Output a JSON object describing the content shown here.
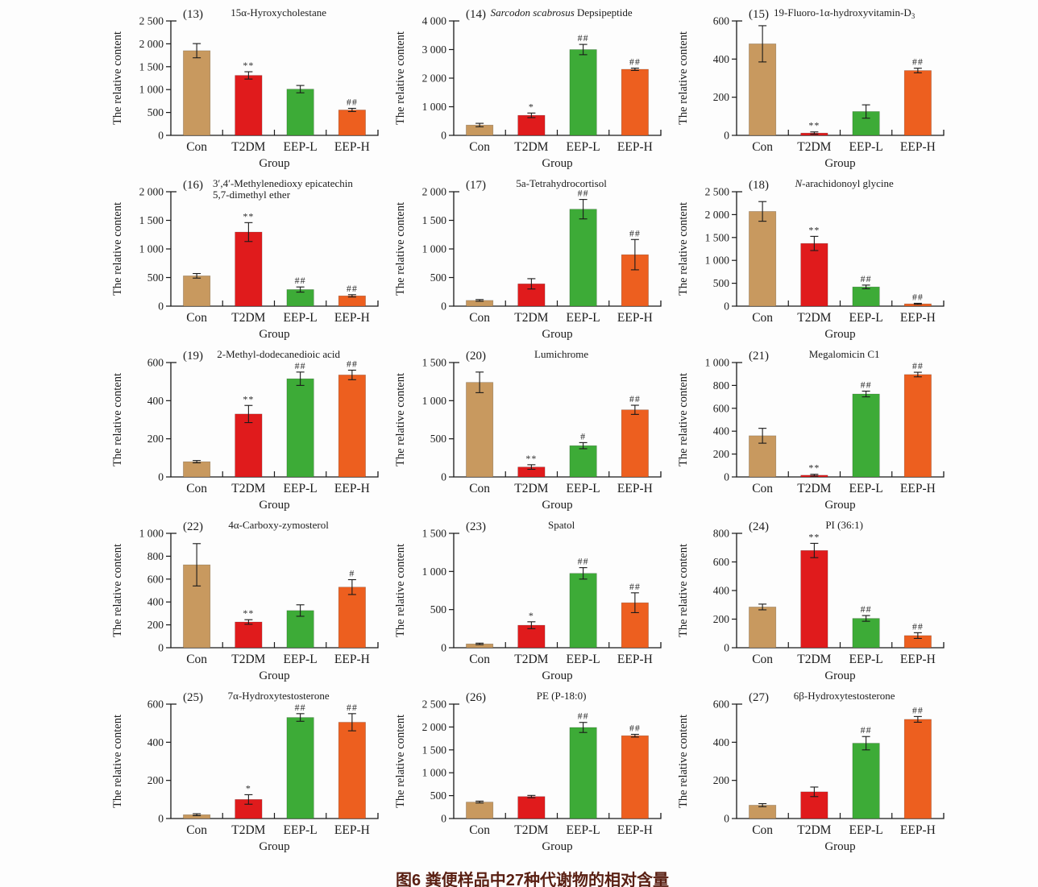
{
  "page": {
    "background": "#fdfdfd"
  },
  "caption": {
    "text": "图6  粪便样品中27种代谢物的相对含量",
    "color": "#5a2013"
  },
  "axes": {
    "ylabel": "The relative content",
    "xlabel": "Group"
  },
  "group_colors": {
    "Con": "#c8995f",
    "T2DM": "#e01b1c",
    "EEP-L": "#3dab37",
    "EEP-H": "#ed5f1f"
  },
  "significance_legend": {
    "vs_control": [
      "*",
      "**"
    ],
    "vs_t2dm": [
      "#",
      "##"
    ]
  },
  "chart_data": {
    "type": "bar",
    "categories": [
      "Con",
      "T2DM",
      "EEP-L",
      "EEP-H"
    ],
    "xlabel": "Group",
    "ylabel": "The relative content",
    "grid": false,
    "panels": [
      {
        "id": "(13)",
        "title": "15α-Hyroxycholestane",
        "ylim": [
          0,
          2500
        ],
        "ystep": 500,
        "values": [
          1850,
          1310,
          1010,
          555
        ],
        "errors": [
          155,
          80,
          80,
          35
        ],
        "sig": [
          "",
          "**",
          "",
          "##"
        ]
      },
      {
        "id": "(14)",
        "title_parts": [
          {
            "text": "Sarcodon scabrosus",
            "italic": true
          },
          {
            "text": " Depsipeptide"
          }
        ],
        "ylim": [
          0,
          4000
        ],
        "ystep": 1000,
        "values": [
          360,
          700,
          3000,
          2310
        ],
        "errors": [
          60,
          80,
          180,
          40
        ],
        "sig": [
          "",
          "*",
          "##",
          "##"
        ]
      },
      {
        "id": "(15)",
        "title_parts": [
          {
            "text": "19-Fluoro-1α-hydroxyvitamin-D"
          },
          {
            "text": "3",
            "sub": true
          }
        ],
        "ylim": [
          0,
          600
        ],
        "ystep": 200,
        "values": [
          480,
          12,
          125,
          340
        ],
        "errors": [
          95,
          6,
          35,
          12
        ],
        "sig": [
          "",
          "**",
          "",
          "##"
        ]
      },
      {
        "id": "(16)",
        "title": "3′,4′-Methylenedioxy epicatechin",
        "title2": "5,7-dimethyl ether",
        "ylim": [
          0,
          2000
        ],
        "ystep": 500,
        "values": [
          530,
          1295,
          290,
          180
        ],
        "errors": [
          40,
          165,
          45,
          20
        ],
        "sig": [
          "",
          "**",
          "##",
          "##"
        ]
      },
      {
        "id": "(17)",
        "title": "5a-Tetrahydrocortisol",
        "ylim": [
          0,
          2000
        ],
        "ystep": 500,
        "values": [
          100,
          390,
          1695,
          900
        ],
        "errors": [
          15,
          90,
          170,
          265
        ],
        "sig": [
          "",
          "",
          "##",
          "##"
        ]
      },
      {
        "id": "(18)",
        "title_parts": [
          {
            "text": "N",
            "italic": true
          },
          {
            "text": "-arachidonoyl glycine"
          }
        ],
        "ylim": [
          0,
          2500
        ],
        "ystep": 500,
        "values": [
          2070,
          1370,
          420,
          50
        ],
        "errors": [
          215,
          155,
          40,
          12
        ],
        "sig": [
          "",
          "**",
          "##",
          "##"
        ]
      },
      {
        "id": "(19)",
        "title": "2-Methyl-dodecanedioic acid",
        "ylim": [
          0,
          600
        ],
        "ystep": 200,
        "values": [
          80,
          330,
          515,
          535
        ],
        "errors": [
          6,
          45,
          35,
          25
        ],
        "sig": [
          "",
          "**",
          "##",
          "##"
        ]
      },
      {
        "id": "(20)",
        "title": "Lumichrome",
        "ylim": [
          0,
          1500
        ],
        "ystep": 500,
        "values": [
          1240,
          130,
          410,
          880
        ],
        "errors": [
          135,
          30,
          40,
          60
        ],
        "sig": [
          "",
          "**",
          "#",
          "##"
        ]
      },
      {
        "id": "(21)",
        "title": "Megalomicin C1",
        "ylim": [
          0,
          1000
        ],
        "ystep": 200,
        "values": [
          360,
          15,
          725,
          895
        ],
        "errors": [
          65,
          8,
          25,
          20
        ],
        "sig": [
          "",
          "**",
          "##",
          "##"
        ]
      },
      {
        "id": "(22)",
        "title": "4α-Carboxy-zymosterol",
        "ylim": [
          0,
          1000
        ],
        "ystep": 200,
        "values": [
          725,
          225,
          325,
          530
        ],
        "errors": [
          185,
          20,
          50,
          65
        ],
        "sig": [
          "",
          "**",
          "",
          "#"
        ]
      },
      {
        "id": "(23)",
        "title": "Spatol",
        "ylim": [
          0,
          1500
        ],
        "ystep": 500,
        "values": [
          50,
          295,
          975,
          590
        ],
        "errors": [
          10,
          45,
          75,
          130
        ],
        "sig": [
          "",
          "*",
          "##",
          "##"
        ]
      },
      {
        "id": "(24)",
        "title": "PI (36:1)",
        "ylim": [
          0,
          800
        ],
        "ystep": 200,
        "values": [
          285,
          680,
          205,
          85
        ],
        "errors": [
          20,
          50,
          20,
          20
        ],
        "sig": [
          "",
          "**",
          "##",
          "##"
        ]
      },
      {
        "id": "(25)",
        "title": "7α-Hydroxytestosterone",
        "ylim": [
          0,
          600
        ],
        "ystep": 200,
        "values": [
          20,
          100,
          530,
          505
        ],
        "errors": [
          5,
          25,
          20,
          45
        ],
        "sig": [
          "",
          "*",
          "##",
          "##"
        ]
      },
      {
        "id": "(26)",
        "title": "PE (P-18:0)",
        "ylim": [
          0,
          2500
        ],
        "ystep": 500,
        "values": [
          360,
          480,
          1990,
          1810
        ],
        "errors": [
          20,
          25,
          110,
          30
        ],
        "sig": [
          "",
          "",
          "##",
          "##"
        ]
      },
      {
        "id": "(27)",
        "title": "6β-Hydroxytestosterone",
        "ylim": [
          0,
          600
        ],
        "ystep": 200,
        "values": [
          70,
          140,
          395,
          520
        ],
        "errors": [
          8,
          25,
          35,
          15
        ],
        "sig": [
          "",
          "",
          "##",
          "##"
        ]
      }
    ]
  }
}
